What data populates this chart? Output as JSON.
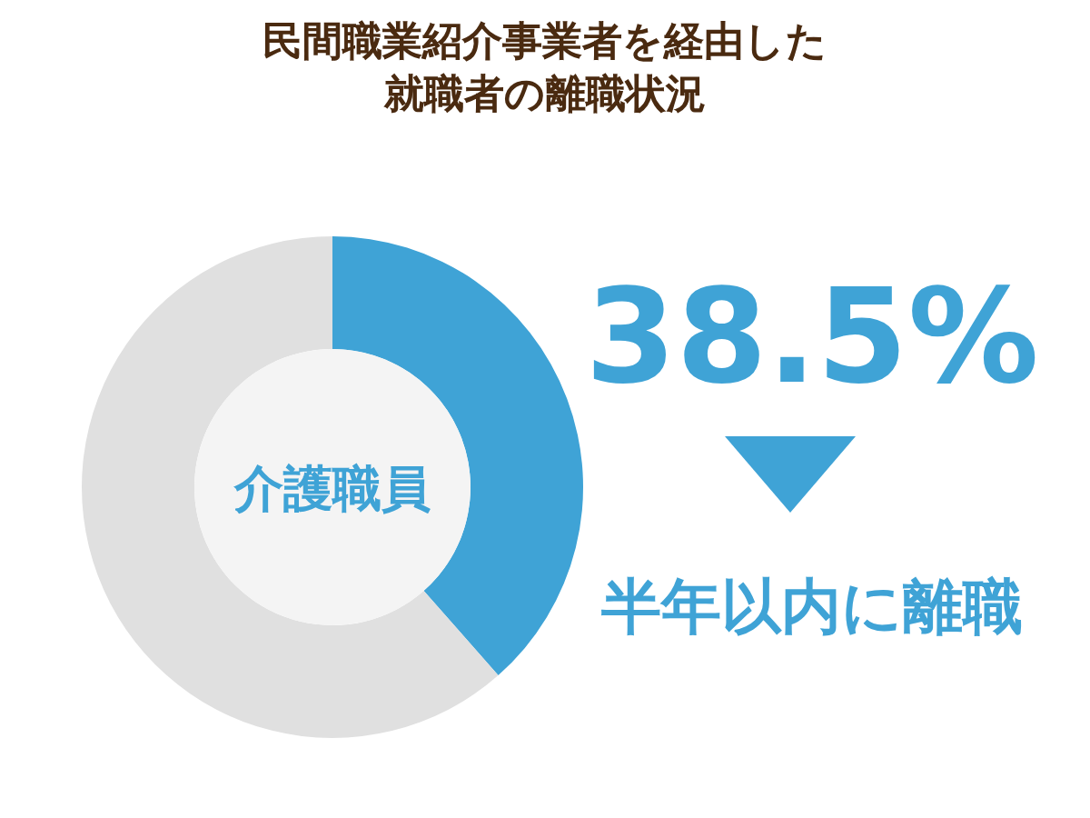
{
  "chart_data": {
    "type": "donut",
    "title": "民間職業紹介事業者を経由した",
    "subtitle": "就職者の離職状況",
    "categories": [
      "半年以内に離職",
      null
    ],
    "values": [
      38.5,
      61.5
    ],
    "colors": [
      "#3fa3d6",
      "#e0e0e0"
    ],
    "value_labels": [
      "38.5%",
      null
    ],
    "annotations": [
      "介護職員"
    ]
  }
}
